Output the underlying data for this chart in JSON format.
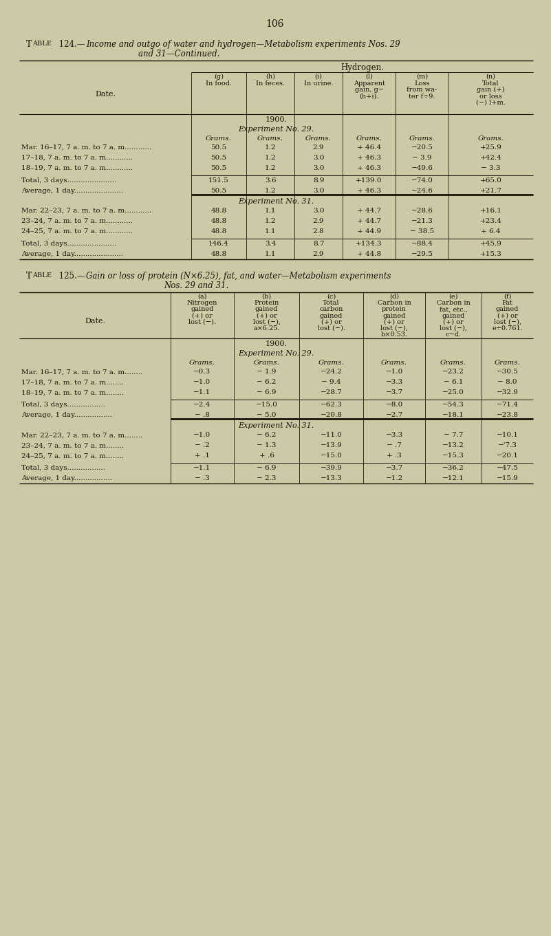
{
  "page_number": "106",
  "bg_color": "#cdc8a5",
  "text_color": "#1a1408",
  "table1": {
    "title_line1_roman": "Table 124.",
    "title_line1_em": "—",
    "title_line1_italic": "Income and outgo of water and hydrogen—Metabolism experiments Nos. 29",
    "title_line2_italic": "and 31—Continued.",
    "header_group": "Hydrogen.",
    "col_headers": [
      [
        "(g)",
        "In food."
      ],
      [
        "(h)",
        "In feces."
      ],
      [
        "(i)",
        "In urine."
      ],
      [
        "(l)",
        "Apparent",
        "gain, g−",
        "(h+i)."
      ],
      [
        "(m)",
        "Loss",
        "from wa-",
        "ter f÷9."
      ],
      [
        "(n)",
        "Total",
        "gain (+)",
        "or loss",
        "(−) l+m."
      ]
    ],
    "date_header": "Date.",
    "sections": [
      {
        "year": "1900.",
        "experiment": "Experiment No. 29.",
        "units": [
          "Grams.",
          "Grams.",
          "Grams.",
          "Grams.",
          "Grams.",
          "Grams."
        ],
        "data_rows": [
          [
            "Mar. 16–17, 7 a. m. to 7 a. m............",
            "50.5",
            "1.2",
            "2.9",
            "+ 46.4",
            "−20.5",
            "+25.9"
          ],
          [
            "17–18, 7 a. m. to 7 a. m............",
            "50.5",
            "1.2",
            "3.0",
            "+ 46.3",
            "− 3.9",
            "+42.4"
          ],
          [
            "18–19, 7 a. m. to 7 a. m............",
            "50.5",
            "1.2",
            "3.0",
            "+ 46.3",
            "−49.6",
            "− 3.3"
          ]
        ],
        "total_row": [
          "Total, 3 days......................",
          "151.5",
          "3.6",
          "8.9",
          "+139.0",
          "−74.0",
          "+65.0"
        ],
        "avg_row": [
          "Average, 1 day......................",
          "50.5",
          "1.2",
          "3.0",
          "+ 46.3",
          "−24.6",
          "+21.7"
        ]
      },
      {
        "experiment": "Experiment No. 31.",
        "data_rows": [
          [
            "Mar. 22–23, 7 a. m. to 7 a. m............",
            "48.8",
            "1.1",
            "3.0",
            "+ 44.7",
            "−28.6",
            "+16.1"
          ],
          [
            "23–24, 7 a. m. to 7 a. m............",
            "48.8",
            "1.2",
            "2.9",
            "+ 44.7",
            "−21.3",
            "+23.4"
          ],
          [
            "24–25, 7 a. m. to 7 a. m............",
            "48.8",
            "1.1",
            "2.8",
            "+ 44.9",
            "− 38.5",
            "+ 6.4"
          ]
        ],
        "total_row": [
          "Total, 3 days......................",
          "146.4",
          "3.4",
          "8.7",
          "+134.3",
          "−88.4",
          "+45.9"
        ],
        "avg_row": [
          "Average, 1 day......................",
          "48.8",
          "1.1",
          "2.9",
          "+ 44.8",
          "−29.5",
          "+15.3"
        ]
      }
    ]
  },
  "table2": {
    "title_line1_roman": "Table 125.",
    "title_line1_em": "—",
    "title_line1_italic": "Gain or loss of protein (N×6.25), fat, and water—Metabolism experiments",
    "title_line2_italic": "Nos. 29 and 31.",
    "col_headers": [
      [
        "(a)",
        "Nitrogen",
        "gained",
        "(+) or",
        "lost (−)."
      ],
      [
        "(b)",
        "Protein",
        "gained",
        "(+) or",
        "lost (−),",
        "a×6.25."
      ],
      [
        "(c)",
        "Total",
        "carbon",
        "gained",
        "(+) or",
        "lost (−)."
      ],
      [
        "(d)",
        "Carbon in",
        "protein",
        "gained",
        "(+) or",
        "lost (−),",
        "b×0.53."
      ],
      [
        "(e)",
        "Carbon in",
        "fat, etc.,",
        "gained",
        "(+) or",
        "lost (−),",
        "c−d."
      ],
      [
        "(f)",
        "Fat",
        "gained",
        "(+) or",
        "lost (−),",
        "e÷0.761."
      ]
    ],
    "date_header": "Date.",
    "sections": [
      {
        "year": "1900.",
        "experiment": "Experiment No. 29.",
        "units": [
          "Grams.",
          "Grams.",
          "Grams.",
          "Grams.",
          "Grams.",
          "Grams."
        ],
        "data_rows": [
          [
            "Mar. 16–17, 7 a. m. to 7 a. m........",
            "−0.3",
            "− 1.9",
            "−24.2",
            "−1.0",
            "−23.2",
            "−30.5"
          ],
          [
            "17–18, 7 a. m. to 7 a. m........",
            "−1.0",
            "− 6.2",
            "− 9.4",
            "−3.3",
            "− 6.1",
            "− 8.0"
          ],
          [
            "18–19, 7 a. m. to 7 a. m........",
            "−1.1",
            "− 6.9",
            "−28.7",
            "−3.7",
            "−25.0",
            "−32.9"
          ]
        ],
        "total_row": [
          "Total, 3 days.................",
          "−2.4",
          "−15.0",
          "−62.3",
          "−8.0",
          "−54.3",
          "−71.4"
        ],
        "avg_row": [
          "Average, 1 day.................",
          "− .8",
          "− 5.0",
          "−20.8",
          "−2.7",
          "−18.1",
          "−23.8"
        ]
      },
      {
        "experiment": "Experiment No. 31.",
        "data_rows": [
          [
            "Mar. 22–23, 7 a. m. to 7 a. m........",
            "−1.0",
            "− 6.2",
            "−11.0",
            "−3.3",
            "− 7.7",
            "−10.1"
          ],
          [
            "23–24, 7 a. m. to 7 a. m........",
            "− .2",
            "− 1.3",
            "−13.9",
            "− .7",
            "−13.2",
            "−'7.3"
          ],
          [
            "24–25, 7 a. m. to 7 a. m........",
            "+ .1",
            "+ .6",
            "−15.0",
            "+ .3",
            "−15.3",
            "−20.1"
          ]
        ],
        "total_row": [
          "Total, 3 days.................",
          "−1.1",
          "− 6.9",
          "−39.9",
          "−3.7",
          "−36.2",
          "−47.5"
        ],
        "avg_row": [
          "Average, 1 day.................",
          "− .3",
          "− 2.3",
          "−13.3",
          "−1.2",
          "−12.1",
          "−15.9"
        ]
      }
    ]
  }
}
